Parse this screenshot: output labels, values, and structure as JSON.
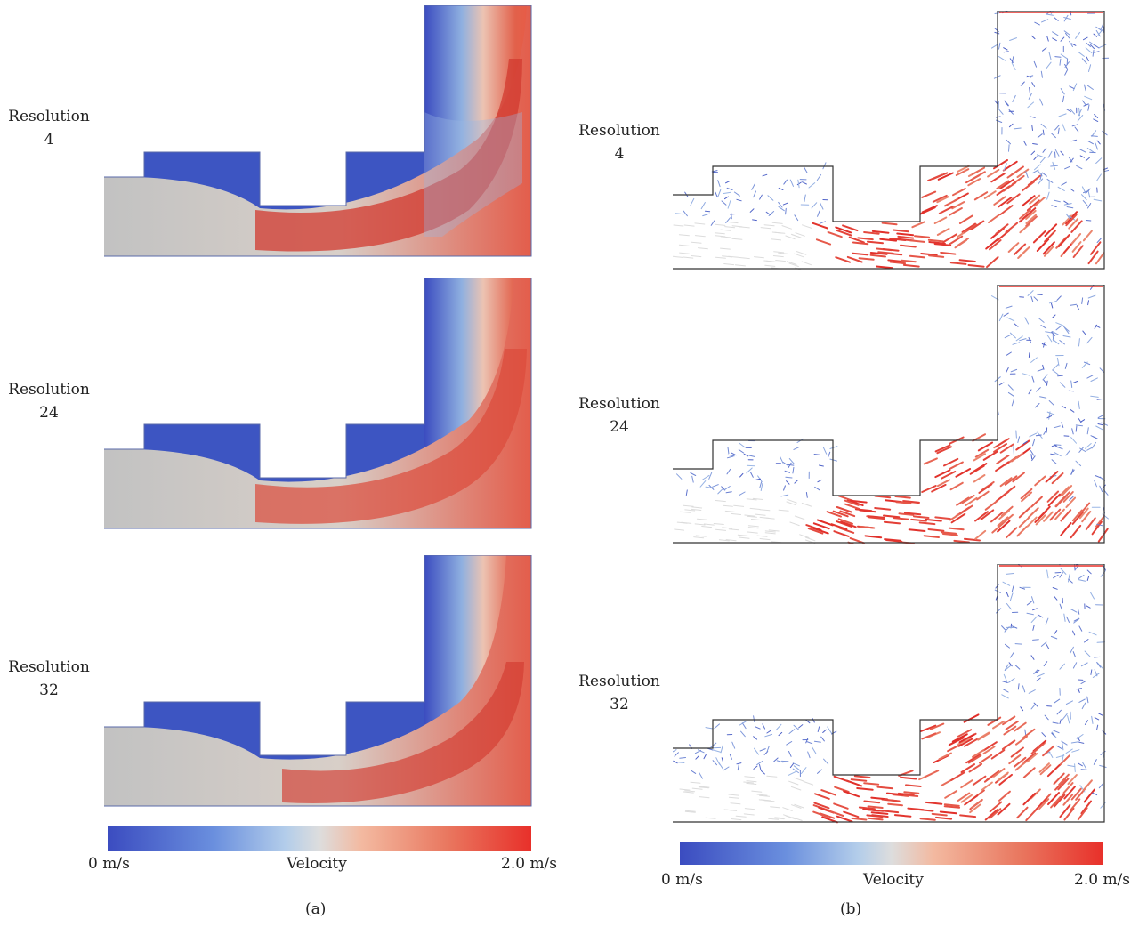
{
  "left_panel": {
    "rows": [
      {
        "label": "Resolution",
        "value": "4"
      },
      {
        "label": "Resolution",
        "value": "24"
      },
      {
        "label": "Resolution",
        "value": "32"
      }
    ],
    "colorbar": {
      "min_label": "0 m/s",
      "title": "Velocity",
      "max_label": "2.0 m/s"
    },
    "caption": "(a)"
  },
  "right_panel": {
    "rows": [
      {
        "label": "Resolution",
        "value": "4"
      },
      {
        "label": "Resolution",
        "value": "24"
      },
      {
        "label": "Resolution",
        "value": "32"
      }
    ],
    "colorbar": {
      "min_label": "0 m/s",
      "title": "Velocity",
      "max_label": "2.0 m/s"
    },
    "caption": "(b)"
  },
  "colors": {
    "low": "#3b4cc0",
    "mid": "#dcdcdc",
    "high": "#e8302a"
  }
}
